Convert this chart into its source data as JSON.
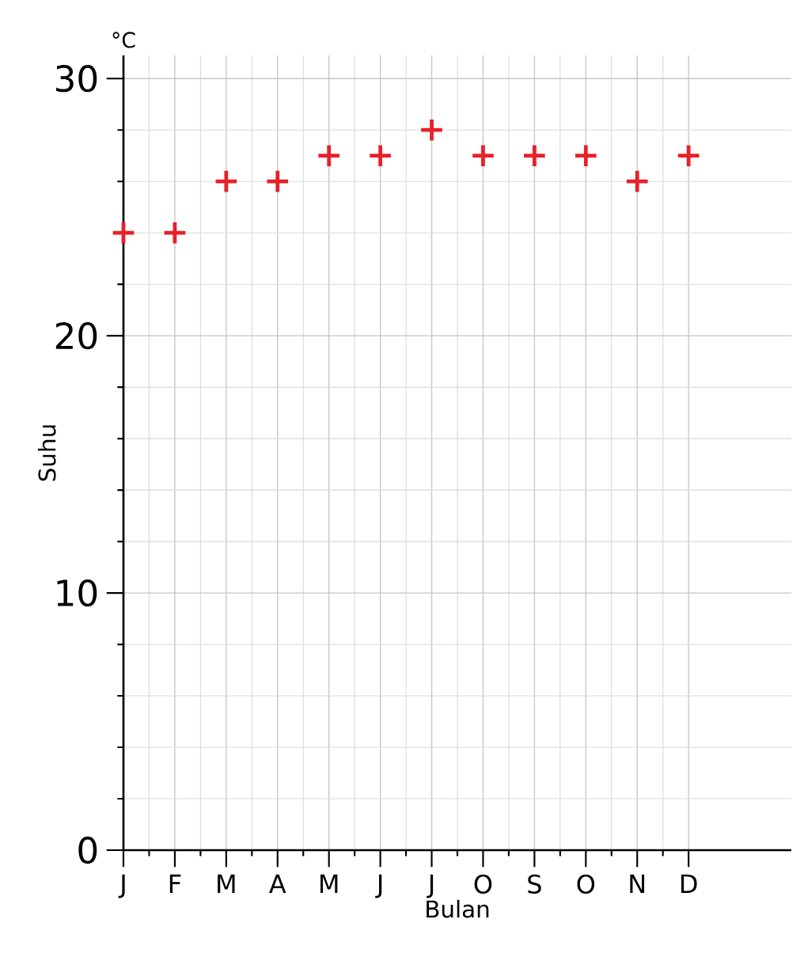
{
  "chart_data": {
    "type": "scatter",
    "xlabel": "Bulan",
    "ylabel": "Suhu",
    "annotations": [
      "°C"
    ],
    "categories": [
      "J",
      "F",
      "M",
      "A",
      "M",
      "J",
      "J",
      "O",
      "S",
      "O",
      "N",
      "D"
    ],
    "series": [
      {
        "color": "#e8202a",
        "values": [
          24,
          24,
          26,
          26,
          27,
          27,
          28,
          27,
          27,
          27,
          26,
          27
        ]
      }
    ],
    "ylim": [
      0,
      30.9
    ],
    "yticks": [
      0,
      10,
      20,
      30
    ],
    "grid": true,
    "marker": "cross"
  }
}
